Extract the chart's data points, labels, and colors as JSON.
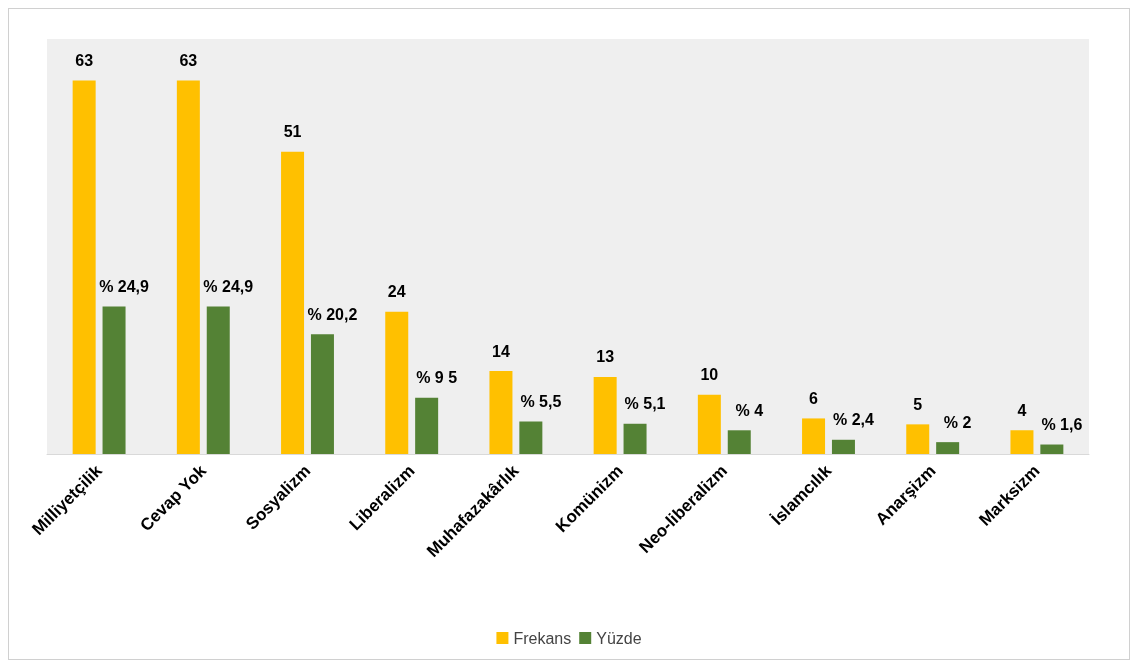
{
  "chart_data": {
    "type": "bar",
    "categories": [
      "Milliyetçilik",
      "Cevap Yok",
      "Sosyalizm",
      "Liberalizm",
      "Muhafazakârlık",
      "Komünizm",
      "Neo-liberalizm",
      "İslamcılık",
      "Anarşizm",
      "Marksizm"
    ],
    "series": [
      {
        "name": "Frekans",
        "color": "#ffc000",
        "values": [
          63,
          63,
          51,
          24,
          14,
          13,
          10,
          6,
          5,
          4
        ],
        "value_labels": [
          "63",
          "63",
          "51",
          "24",
          "14",
          "13",
          "10",
          "6",
          "5",
          "4"
        ]
      },
      {
        "name": "Yüzde",
        "color": "#548235",
        "values": [
          24.9,
          24.9,
          20.2,
          9.5,
          5.5,
          5.1,
          4,
          2.4,
          2,
          1.6
        ],
        "value_labels": [
          "% 24,9",
          "% 24,9",
          "% 20,2",
          "% 9 5",
          "% 5,5",
          "% 5,1",
          "% 4",
          "% 2,4",
          "% 2",
          "% 1,6"
        ]
      }
    ],
    "legend": "bottom"
  }
}
